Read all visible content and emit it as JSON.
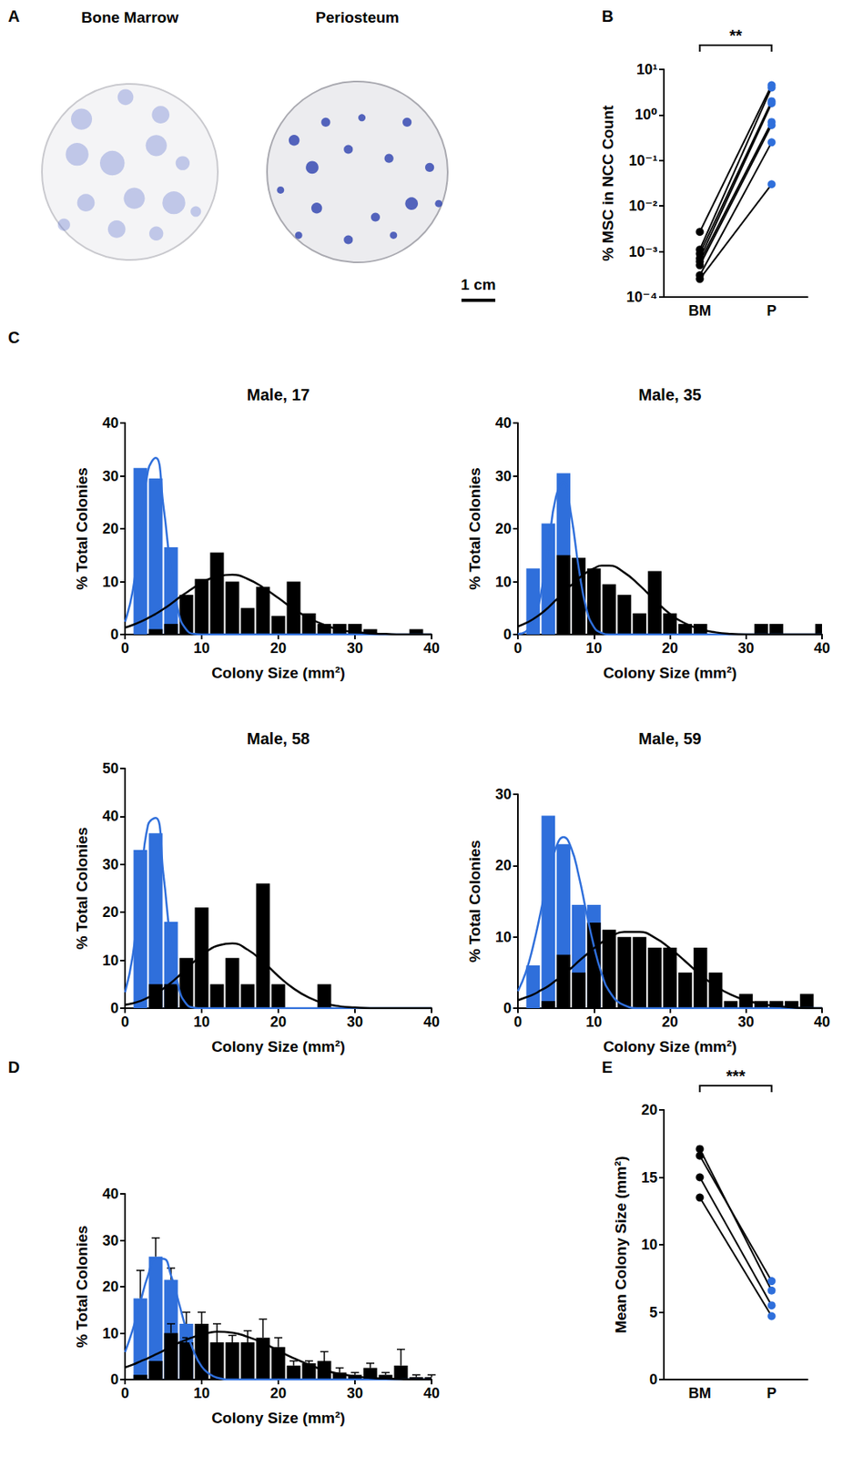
{
  "panel_letters": [
    "A",
    "B",
    "C",
    "D",
    "E"
  ],
  "panel_a": {
    "dishes": [
      {
        "label": "Bone Marrow"
      },
      {
        "label": "Periosteum"
      }
    ],
    "scale_bar": "1 cm"
  },
  "chart_data": [
    {
      "type": "paired",
      "categories": [
        "BM",
        "P"
      ],
      "colors": [
        "#000000",
        "#2f6fdb"
      ],
      "ylabel": "% MSC in NCC Count",
      "log": "y",
      "grid": false,
      "ylim": [
        0.0001,
        10
      ],
      "yticks": [
        {
          "value": 0.0001,
          "label": "10⁻⁴"
        },
        {
          "value": 0.001,
          "label": "10⁻³"
        },
        {
          "value": 0.01,
          "label": "10⁻²"
        },
        {
          "value": 0.1,
          "label": "10⁻¹"
        },
        {
          "value": 1,
          "label": "10⁰"
        },
        {
          "value": 10,
          "label": "10¹"
        }
      ],
      "pairs": [
        [
          0.0027,
          4.5
        ],
        [
          0.0011,
          4
        ],
        [
          0.0009,
          2
        ],
        [
          0.0007,
          1.8
        ],
        [
          0.0006,
          0.7
        ],
        [
          0.0005,
          0.6
        ],
        [
          0.0003,
          0.25
        ],
        [
          0.00025,
          0.03
        ]
      ],
      "annotations": [
        {
          "text": "**"
        }
      ]
    },
    {
      "type": "histogram",
      "title": "Male, 17",
      "xlabel": "Colony Size (mm²)",
      "ylabel": "% Total Colonies",
      "grid": false,
      "xlim": [
        0,
        40
      ],
      "xticks": [
        0,
        10,
        20,
        30,
        40
      ],
      "ylim": [
        0,
        40
      ],
      "yticks": [
        0,
        10,
        20,
        30,
        40
      ],
      "bins": [
        1,
        3,
        5,
        7,
        9,
        11,
        13,
        15,
        17,
        19,
        21,
        23,
        25,
        27,
        29,
        31,
        33,
        35,
        37,
        39,
        41
      ],
      "series": [
        {
          "color": "#2f6fdb",
          "values": [
            31.5,
            29.5,
            16.5,
            0,
            0,
            0,
            0,
            0,
            0,
            0,
            0,
            0,
            0,
            0,
            0,
            0,
            0,
            0,
            0,
            0
          ]
        },
        {
          "color": "#000000",
          "values": [
            0,
            1,
            2,
            7.5,
            10.5,
            15.5,
            10,
            5,
            9,
            3.5,
            10,
            4,
            2,
            2,
            2,
            1,
            0,
            0,
            1,
            0
          ]
        }
      ],
      "fit_x": [
        0,
        1,
        2,
        3,
        4,
        5,
        6,
        7,
        8,
        9,
        10,
        11,
        12,
        14,
        16,
        18,
        20,
        22,
        24,
        26,
        28,
        30,
        32,
        34,
        36,
        38,
        40
      ],
      "fits": [
        {
          "color": "#2f6fdb",
          "values": [
            2.4,
            8.2,
            19.3,
            31,
            33.4,
            24.4,
            12.1,
            4,
            0.9,
            0.1,
            0,
            0,
            0,
            0,
            0,
            0,
            0,
            0,
            0,
            0,
            0,
            0,
            0,
            0,
            0,
            0,
            0
          ]
        },
        {
          "color": "#000000",
          "values": [
            1.3,
            1.8,
            2.4,
            3.1,
            3.9,
            4.8,
            5.8,
            6.9,
            7.9,
            8.9,
            9.8,
            10.5,
            11,
            11.3,
            10.5,
            8.9,
            6.9,
            4.8,
            3.1,
            1.8,
            0.9,
            0.45,
            0.2,
            0.1,
            0,
            0,
            0
          ]
        }
      ]
    },
    {
      "type": "histogram",
      "title": "Male, 35",
      "xlabel": "Colony Size (mm²)",
      "ylabel": "% Total Colonies",
      "grid": false,
      "xlim": [
        0,
        40
      ],
      "xticks": [
        0,
        10,
        20,
        30,
        40
      ],
      "ylim": [
        0,
        40
      ],
      "yticks": [
        0,
        10,
        20,
        30,
        40
      ],
      "bins": [
        1,
        3,
        5,
        7,
        9,
        11,
        13,
        15,
        17,
        19,
        21,
        23,
        25,
        27,
        29,
        31,
        33,
        35,
        37,
        39,
        41
      ],
      "series": [
        {
          "color": "#2f6fdb",
          "values": [
            12.5,
            21,
            30.5,
            8,
            0,
            0,
            0,
            0,
            0,
            0,
            0,
            0,
            0,
            0,
            0,
            0,
            0,
            0,
            0,
            0
          ]
        },
        {
          "color": "#000000",
          "values": [
            0,
            0,
            15,
            14.5,
            12.5,
            9.5,
            7.5,
            4,
            12,
            4,
            2,
            2,
            0,
            0,
            0,
            2,
            2,
            0,
            0,
            2
          ]
        }
      ],
      "fit_x": [
        0,
        1,
        2,
        3,
        4,
        5,
        6,
        7,
        8,
        9,
        10,
        11,
        12,
        14,
        16,
        18,
        20,
        22,
        24,
        26,
        28,
        30,
        32,
        34,
        36,
        38,
        40
      ],
      "fits": [
        {
          "color": "#2f6fdb",
          "values": [
            0.1,
            0.5,
            2.4,
            7.5,
            16.6,
            26,
            28.8,
            22.6,
            12.6,
            4.9,
            1.4,
            0.3,
            0,
            0,
            0,
            0,
            0,
            0,
            0,
            0,
            0,
            0,
            0,
            0,
            0,
            0,
            0
          ]
        },
        {
          "color": "#000000",
          "values": [
            1.5,
            2.1,
            2.9,
            3.9,
            5.1,
            6.5,
            7.9,
            9.3,
            10.6,
            11.7,
            12.5,
            13,
            13,
            11.7,
            9.3,
            6.5,
            3.9,
            2.1,
            1,
            0.4,
            0.1,
            0,
            0,
            0,
            0,
            0,
            0
          ]
        }
      ]
    },
    {
      "type": "histogram",
      "title": "Male, 58",
      "xlabel": "Colony Size (mm²)",
      "ylabel": "% Total Colonies",
      "grid": false,
      "xlim": [
        0,
        40
      ],
      "xticks": [
        0,
        10,
        20,
        30,
        40
      ],
      "ylim": [
        0,
        50
      ],
      "yticks": [
        0,
        10,
        20,
        30,
        40,
        50
      ],
      "bins": [
        1,
        3,
        5,
        7,
        9,
        11,
        13,
        15,
        17,
        19,
        21,
        23,
        25,
        27,
        29,
        31,
        33,
        35,
        37,
        39,
        41
      ],
      "series": [
        {
          "color": "#2f6fdb",
          "values": [
            33,
            36.5,
            18,
            0,
            0,
            0,
            0,
            0,
            0,
            0,
            0,
            0,
            0,
            0,
            0,
            0,
            0,
            0,
            0,
            0
          ]
        },
        {
          "color": "#000000",
          "values": [
            0,
            5,
            5,
            10.5,
            21,
            5,
            10.5,
            5,
            26,
            5,
            0,
            0,
            5,
            0,
            0,
            0,
            0,
            0,
            0,
            0
          ]
        }
      ],
      "fit_x": [
        0,
        1,
        2,
        3,
        4,
        5,
        6,
        7,
        8,
        9,
        10,
        11,
        12,
        14,
        16,
        18,
        20,
        22,
        24,
        26,
        28,
        30,
        32,
        34,
        36,
        38,
        40
      ],
      "fits": [
        {
          "color": "#2f6fdb",
          "values": [
            3.3,
            10.9,
            24.9,
            38.2,
            39.7,
            28,
            13.3,
            4.3,
            0.9,
            0.1,
            0,
            0,
            0,
            0,
            0,
            0,
            0,
            0,
            0,
            0,
            0,
            0,
            0,
            0,
            0,
            0,
            0
          ]
        },
        {
          "color": "#000000",
          "values": [
            0.7,
            1,
            1.5,
            2.2,
            3,
            4.1,
            5.3,
            6.7,
            8.2,
            9.7,
            11,
            12.2,
            13,
            13.5,
            12.2,
            9.7,
            6.7,
            4.1,
            2.2,
            1,
            0.4,
            0.15,
            0,
            0,
            0,
            0,
            0
          ]
        }
      ]
    },
    {
      "type": "histogram",
      "title": "Male, 59",
      "xlabel": "Colony Size (mm²)",
      "ylabel": "% Total Colonies",
      "grid": false,
      "xlim": [
        0,
        40
      ],
      "xticks": [
        0,
        10,
        20,
        30,
        40
      ],
      "ylim": [
        0,
        30
      ],
      "yticks": [
        0,
        10,
        20,
        30
      ],
      "bins": [
        1,
        3,
        5,
        7,
        9,
        11,
        13,
        15,
        17,
        19,
        21,
        23,
        25,
        27,
        29,
        31,
        33,
        35,
        37,
        39,
        41
      ],
      "series": [
        {
          "color": "#2f6fdb",
          "values": [
            6,
            27,
            23,
            14.5,
            14.5,
            0,
            0,
            0,
            0,
            0,
            0,
            0,
            0,
            0,
            0,
            0,
            0,
            0,
            0,
            0
          ]
        },
        {
          "color": "#000000",
          "values": [
            0,
            1,
            7.5,
            5,
            12,
            11,
            10,
            10,
            8.5,
            8.5,
            5,
            8.5,
            5,
            1,
            2,
            1,
            1,
            1,
            2,
            0
          ]
        }
      ],
      "fit_x": [
        0,
        1,
        2,
        3,
        4,
        5,
        6,
        7,
        8,
        9,
        10,
        11,
        12,
        14,
        16,
        18,
        20,
        22,
        24,
        26,
        28,
        30,
        32,
        34,
        36,
        38,
        40
      ],
      "fits": [
        {
          "color": "#2f6fdb",
          "values": [
            2.4,
            4.9,
            8.7,
            13.5,
            18.6,
            22.5,
            24,
            22.5,
            18.6,
            13.5,
            8.7,
            4.9,
            2.4,
            0.4,
            0,
            0,
            0,
            0,
            0,
            0,
            0,
            0,
            0,
            0,
            0,
            0,
            0
          ]
        },
        {
          "color": "#000000",
          "values": [
            1.1,
            1.5,
            1.9,
            2.5,
            3.1,
            3.9,
            4.7,
            5.6,
            6.6,
            7.5,
            8.4,
            9.2,
            9.9,
            10.7,
            10.7,
            9.9,
            8.4,
            6.6,
            4.7,
            3.1,
            1.9,
            1.1,
            0.6,
            0.3,
            0.1,
            0,
            0
          ]
        }
      ]
    },
    {
      "type": "histogram",
      "xlabel": "Colony Size (mm²)",
      "ylabel": "% Total Colonies",
      "grid": false,
      "xlim": [
        0,
        40
      ],
      "xticks": [
        0,
        10,
        20,
        30,
        40
      ],
      "ylim": [
        0,
        40
      ],
      "yticks": [
        0,
        10,
        20,
        30,
        40
      ],
      "bins": [
        1,
        3,
        5,
        7,
        9,
        11,
        13,
        15,
        17,
        19,
        21,
        23,
        25,
        27,
        29,
        31,
        33,
        35,
        37,
        39,
        41
      ],
      "series": [
        {
          "color": "#2f6fdb",
          "values": [
            17.5,
            26.5,
            21.5,
            12,
            0,
            0,
            0,
            0,
            0,
            0,
            0,
            0,
            0,
            0,
            0,
            0,
            0,
            0,
            0,
            0
          ],
          "errors": [
            6,
            4,
            2.5,
            2.5,
            0,
            0,
            0,
            0,
            0,
            0,
            0,
            0,
            0,
            0,
            0,
            0,
            0,
            0,
            0,
            0
          ]
        },
        {
          "color": "#000000",
          "values": [
            1,
            4,
            10,
            8,
            12,
            8,
            8,
            8,
            9,
            7,
            3,
            3.5,
            4,
            1.5,
            1,
            2.5,
            1,
            3,
            0.5,
            0.5
          ],
          "errors": [
            0,
            0,
            2,
            1,
            2.5,
            4,
            1.5,
            2.5,
            4,
            2,
            1,
            0.5,
            2,
            1,
            0.5,
            1,
            0.5,
            3.5,
            0.5,
            0.5
          ]
        }
      ],
      "fit_x": [
        0,
        1,
        2,
        3,
        4,
        5,
        6,
        7,
        8,
        9,
        10,
        11,
        12,
        14,
        16,
        18,
        20,
        22,
        24,
        26,
        28,
        30,
        32,
        34,
        36,
        38,
        40
      ],
      "fits": [
        {
          "color": "#2f6fdb",
          "values": [
            5.9,
            10.7,
            16.7,
            22.4,
            26,
            26,
            22.4,
            16.7,
            10.7,
            5.9,
            2.8,
            1.2,
            0.4,
            0,
            0,
            0,
            0,
            0,
            0,
            0,
            0,
            0,
            0,
            0,
            0,
            0,
            0
          ]
        },
        {
          "color": "#000000",
          "values": [
            2.6,
            3.2,
            3.9,
            4.6,
            5.4,
            6.2,
            7.1,
            7.9,
            8.6,
            9.2,
            9.7,
            10.1,
            10.3,
            10.1,
            9.2,
            7.9,
            6.2,
            4.6,
            3.2,
            2,
            1.2,
            0.7,
            0.35,
            0.2,
            0.1,
            0,
            0
          ]
        }
      ]
    },
    {
      "type": "paired",
      "categories": [
        "BM",
        "P"
      ],
      "colors": [
        "#000000",
        "#2f6fdb"
      ],
      "ylabel": "Mean Colony Size (mm²)",
      "grid": false,
      "ylim": [
        0,
        20
      ],
      "yticks": [
        0,
        5,
        10,
        15,
        20
      ],
      "pairs": [
        [
          17.1,
          6.6
        ],
        [
          16.6,
          7.3
        ],
        [
          15,
          5.5
        ],
        [
          13.5,
          4.7
        ]
      ],
      "annotations": [
        {
          "text": "***"
        }
      ]
    }
  ]
}
